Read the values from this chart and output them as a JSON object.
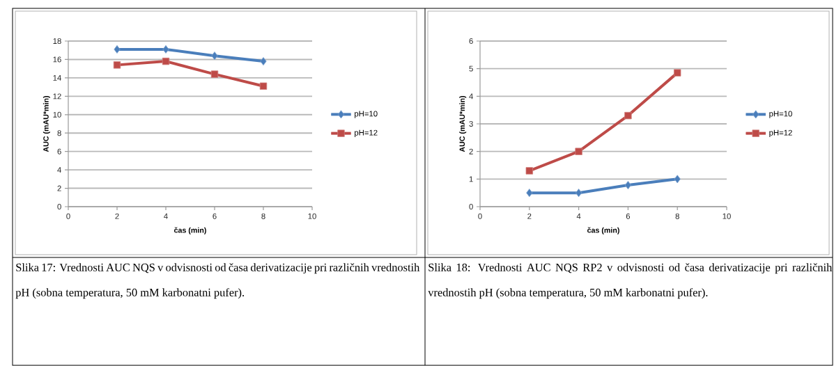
{
  "chart_data": [
    {
      "type": "line",
      "xlabel": "čas (min)",
      "ylabel": "AUC (mAU*min)",
      "xlim": [
        0,
        10
      ],
      "xticks": [
        0,
        2,
        4,
        6,
        8,
        10
      ],
      "ylim": [
        0,
        18
      ],
      "yticks": [
        0,
        2,
        4,
        6,
        8,
        10,
        12,
        14,
        16,
        18
      ],
      "grid": "y",
      "legend": "right",
      "series": [
        {
          "name": "pH=10",
          "color": "#4a7ebb",
          "marker": "diamond",
          "x": [
            2,
            4,
            6,
            8
          ],
          "values": [
            17.1,
            17.1,
            16.4,
            15.8
          ]
        },
        {
          "name": "pH=12",
          "color": "#be4b48",
          "marker": "square",
          "x": [
            2,
            4,
            6,
            8
          ],
          "values": [
            15.4,
            15.8,
            14.4,
            13.1
          ]
        }
      ],
      "annotations": [
        "Slika 17: Vrednosti AUC NQS v odvisnosti od časa derivatizacije pri različnih vrednostih pH (sobna temperatura, 50 mM karbonatni pufer)."
      ]
    },
    {
      "type": "line",
      "xlabel": "čas (min)",
      "ylabel": "AUC (mAU*min)",
      "xlim": [
        0,
        10
      ],
      "xticks": [
        0,
        2,
        4,
        6,
        8,
        10
      ],
      "ylim": [
        0,
        6
      ],
      "yticks": [
        0,
        1,
        2,
        3,
        4,
        5,
        6
      ],
      "grid": "y",
      "legend": "right",
      "series": [
        {
          "name": "pH=10",
          "color": "#4a7ebb",
          "marker": "diamond",
          "x": [
            2,
            4,
            6,
            8
          ],
          "values": [
            0.5,
            0.5,
            0.78,
            1.0
          ]
        },
        {
          "name": "pH=12",
          "color": "#be4b48",
          "marker": "square",
          "x": [
            2,
            4,
            6,
            8
          ],
          "values": [
            1.3,
            2.0,
            3.3,
            4.85
          ]
        }
      ],
      "annotations": [
        "Slika 18: Vrednosti AUC NQS RP2 v odvisnosti od časa derivatizacije pri različnih vrednostih pH (sobna temperatura, 50 mM karbonatni pufer)."
      ]
    }
  ]
}
